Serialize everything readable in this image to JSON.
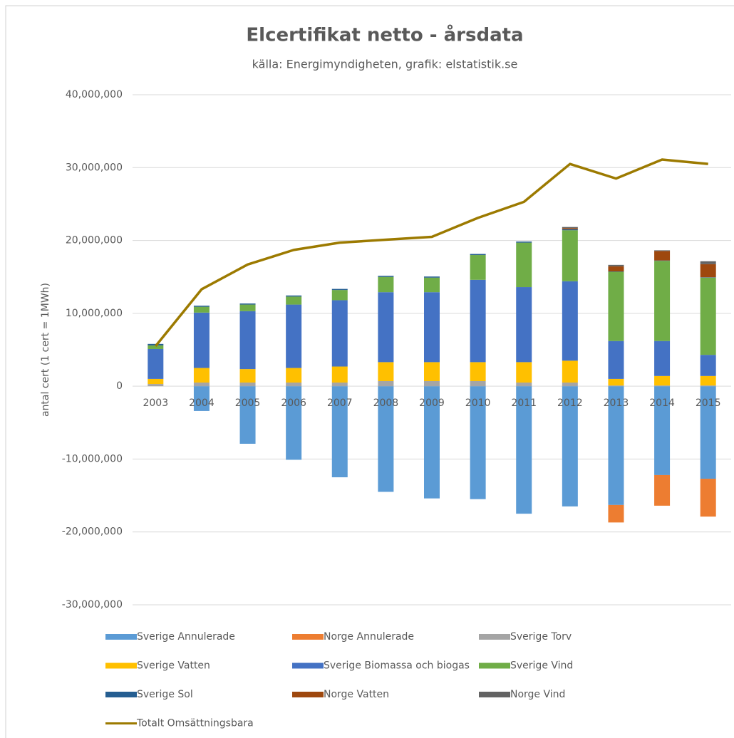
{
  "chart_data": {
    "type": "bar",
    "stacked": true,
    "title": "Elcertifikat netto - årsdata",
    "subtitle": "källa: Energimyndigheten, grafik: elstatistik.se",
    "y_label": "antal cert (1 cert = 1MWh)",
    "categories": [
      "2003",
      "2004",
      "2005",
      "2006",
      "2007",
      "2008",
      "2009",
      "2010",
      "2011",
      "2012",
      "2013",
      "2014",
      "2015"
    ],
    "ylim": [
      -30000000,
      40000000
    ],
    "yticks": [
      {
        "value": 40000000,
        "label": "40,000,000"
      },
      {
        "value": 30000000,
        "label": "30,000,000"
      },
      {
        "value": 20000000,
        "label": "20,000,000"
      },
      {
        "value": 10000000,
        "label": "10,000,000"
      },
      0,
      {
        "value": -10000000,
        "label": "-10,000,000"
      },
      {
        "value": -20000000,
        "label": "-20,000,000"
      },
      {
        "value": -30000000,
        "label": "-30,000,000"
      }
    ],
    "grid": true,
    "legend": "bottom",
    "series": [
      {
        "name": "Sverige  Annulerade",
        "color": "#5b9bd5",
        "values": [
          0,
          -3400000,
          -7900000,
          -10100000,
          -12500000,
          -14500000,
          -15400000,
          -15500000,
          -17500000,
          -16500000,
          -16300000,
          -12200000,
          -12700000
        ]
      },
      {
        "name": "Norge Annulerade",
        "color": "#ed7d31",
        "values": [
          0,
          0,
          0,
          0,
          0,
          0,
          0,
          0,
          0,
          0,
          -2400000,
          -4200000,
          -5200000
        ]
      },
      {
        "name": "Sverige  Torv",
        "color": "#a5a5a5",
        "values": [
          300000,
          500000,
          500000,
          500000,
          500000,
          700000,
          700000,
          700000,
          500000,
          500000,
          100000,
          100000,
          100000
        ]
      },
      {
        "name": "Sverige  Vatten",
        "color": "#ffc000",
        "values": [
          700000,
          2000000,
          1850000,
          2000000,
          2200000,
          2600000,
          2600000,
          2600000,
          2800000,
          3000000,
          900000,
          1300000,
          1300000
        ]
      },
      {
        "name": "Sverige  Biomassa och biogas",
        "color": "#4472c4",
        "values": [
          4100000,
          7600000,
          7950000,
          8700000,
          9100000,
          9600000,
          9600000,
          11300000,
          10300000,
          10900000,
          5200000,
          4800000,
          2900000
        ]
      },
      {
        "name": "Sverige  Vind",
        "color": "#70ad47",
        "values": [
          500000,
          800000,
          900000,
          1100000,
          1400000,
          2100000,
          2000000,
          3400000,
          6100000,
          7000000,
          9500000,
          11000000,
          10600000
        ]
      },
      {
        "name": "Sverige  Sol",
        "color": "#255e91",
        "values": [
          200000,
          150000,
          150000,
          150000,
          150000,
          150000,
          150000,
          150000,
          150000,
          150000,
          50000,
          50000,
          50000
        ]
      },
      {
        "name": "Norge Vatten",
        "color": "#9e480e",
        "values": [
          0,
          0,
          0,
          0,
          0,
          0,
          0,
          0,
          0,
          150000,
          700000,
          1300000,
          1800000
        ]
      },
      {
        "name": "Norge Vind",
        "color": "#636363",
        "values": [
          0,
          0,
          0,
          0,
          0,
          0,
          0,
          0,
          0,
          150000,
          200000,
          100000,
          400000
        ]
      },
      {
        "name": "Totalt  Omsättningsbara",
        "type": "line",
        "color": "#9c7a00",
        "values": [
          5500000,
          13300000,
          16700000,
          18700000,
          19700000,
          20100000,
          20500000,
          23100000,
          25300000,
          30500000,
          28500000,
          31100000,
          30500000
        ]
      }
    ]
  }
}
